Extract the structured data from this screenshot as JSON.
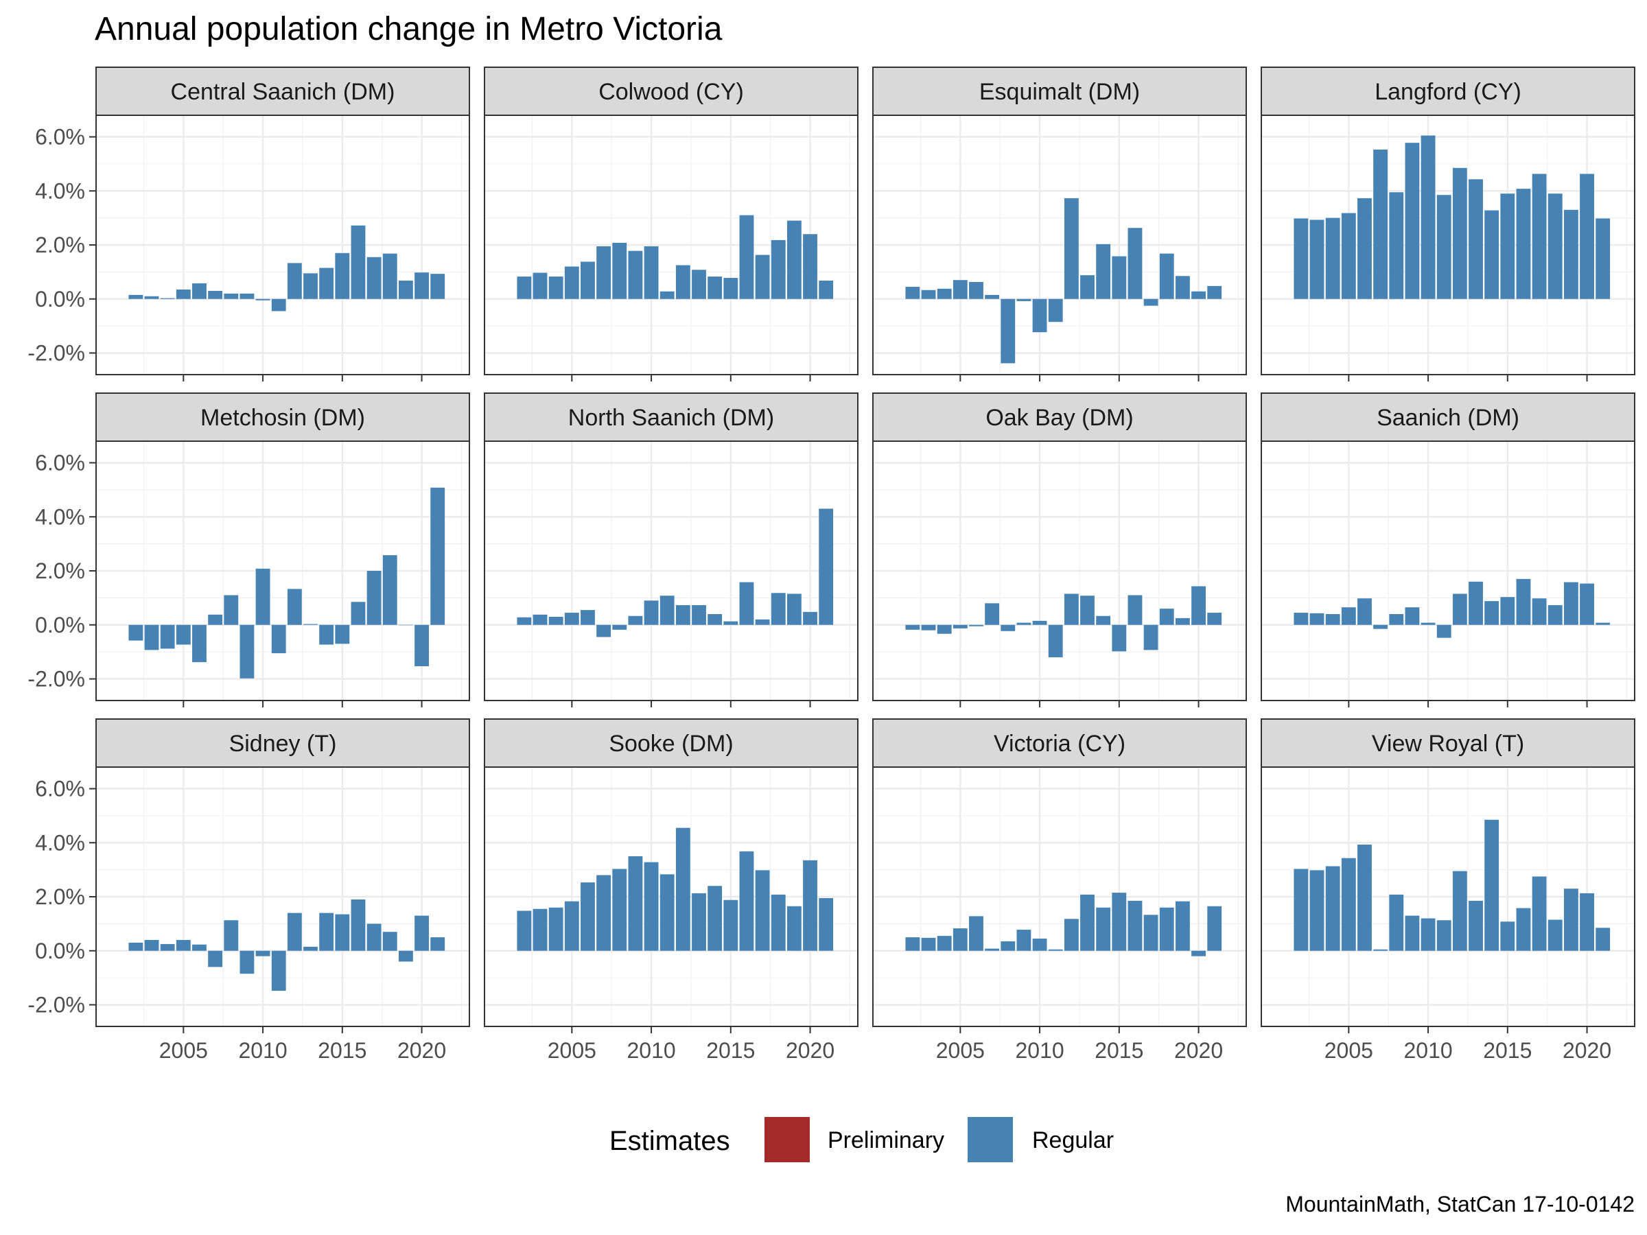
{
  "chart_data": {
    "type": "bar",
    "title": "Annual population change in Metro Victoria",
    "caption": "MountainMath, StatCan 17-10-0142",
    "ylim": [
      -0.028,
      0.068
    ],
    "y_ticks": [
      -0.02,
      0.0,
      0.02,
      0.04,
      0.06
    ],
    "y_tick_labels": [
      "-2.0%",
      "0.0%",
      "2.0%",
      "4.0%",
      "6.0%"
    ],
    "xlim": [
      1999.5,
      2023.0
    ],
    "x_ticks": [
      2005,
      2010,
      2015,
      2020
    ],
    "x_tick_labels": [
      "2005",
      "2010",
      "2015",
      "2020"
    ],
    "years": [
      2002,
      2003,
      2004,
      2005,
      2006,
      2007,
      2008,
      2009,
      2010,
      2011,
      2012,
      2013,
      2014,
      2015,
      2016,
      2017,
      2018,
      2019,
      2020,
      2021,
      2022
    ],
    "preliminary_year": 2022,
    "grid": true,
    "facet_layout": {
      "rows": 3,
      "cols": 4
    },
    "legend": {
      "title": "Estimates",
      "position": "bottom",
      "items": [
        {
          "label": "Preliminary",
          "color": "#a52a2a"
        },
        {
          "label": "Regular",
          "color": "#4682b4"
        }
      ]
    },
    "panels": [
      {
        "name": "Central Saanich (DM)",
        "values": [
          0.0015,
          0.001,
          0.0003,
          0.0035,
          0.0058,
          0.003,
          0.002,
          0.002,
          -0.0005,
          -0.0045,
          0.0133,
          0.0095,
          0.0115,
          0.017,
          0.0272,
          0.0155,
          0.0168,
          0.0068,
          0.0098,
          0.0093,
          null
        ]
      },
      {
        "name": "Colwood (CY)",
        "values": [
          0.0083,
          0.0097,
          0.0083,
          0.012,
          0.0138,
          0.0195,
          0.0208,
          0.0178,
          0.0195,
          0.0028,
          0.0125,
          0.0108,
          0.0083,
          0.0078,
          0.031,
          0.0163,
          0.0218,
          0.029,
          0.024,
          0.0068,
          null
        ]
      },
      {
        "name": "Esquimalt (DM)",
        "values": [
          0.0045,
          0.0033,
          0.0038,
          0.007,
          0.0063,
          0.0015,
          -0.0238,
          -0.0008,
          -0.0123,
          -0.0085,
          0.0373,
          0.0088,
          0.0203,
          0.0158,
          0.0263,
          -0.0025,
          0.0168,
          0.0085,
          0.0028,
          0.0048,
          null
        ]
      },
      {
        "name": "Langford (CY)",
        "values": [
          0.0298,
          0.0293,
          0.03,
          0.0318,
          0.0373,
          0.0553,
          0.0395,
          0.0578,
          0.0605,
          0.0385,
          0.0485,
          0.0443,
          0.0328,
          0.039,
          0.0408,
          0.0463,
          0.039,
          0.033,
          0.0463,
          0.0298,
          null
        ]
      },
      {
        "name": "Metchosin (DM)",
        "values": [
          -0.0058,
          -0.0093,
          -0.0088,
          -0.0073,
          -0.0138,
          0.0038,
          0.011,
          -0.0198,
          0.0208,
          -0.0105,
          0.0133,
          0.0003,
          -0.0073,
          -0.007,
          0.0085,
          0.02,
          0.0258,
          0.0,
          -0.0153,
          0.0508,
          null
        ]
      },
      {
        "name": "North Saanich (DM)",
        "values": [
          0.0028,
          0.0038,
          0.003,
          0.0045,
          0.0055,
          -0.0045,
          -0.0018,
          0.0033,
          0.009,
          0.0108,
          0.0073,
          0.0073,
          0.004,
          0.0013,
          0.0158,
          0.002,
          0.0118,
          0.0115,
          0.0048,
          0.043,
          null
        ]
      },
      {
        "name": "Oak Bay (DM)",
        "values": [
          -0.0018,
          -0.002,
          -0.0033,
          -0.0013,
          -0.0005,
          0.008,
          -0.0023,
          0.0008,
          0.0015,
          -0.012,
          0.0115,
          0.0108,
          0.0033,
          -0.0098,
          0.011,
          -0.0093,
          0.006,
          0.0025,
          0.0143,
          0.0045,
          null
        ]
      },
      {
        "name": "Saanich (DM)",
        "values": [
          0.0045,
          0.0043,
          0.004,
          0.0065,
          0.0098,
          -0.0015,
          0.004,
          0.0065,
          0.0008,
          -0.0048,
          0.0115,
          0.016,
          0.0088,
          0.0103,
          0.017,
          0.0098,
          0.0073,
          0.0158,
          0.0153,
          0.0008,
          null
        ]
      },
      {
        "name": "Sidney (T)",
        "values": [
          0.003,
          0.004,
          0.0025,
          0.004,
          0.0023,
          -0.006,
          0.0113,
          -0.0085,
          -0.002,
          -0.0148,
          0.014,
          0.0015,
          0.014,
          0.0135,
          0.019,
          0.01,
          0.007,
          -0.004,
          0.013,
          0.005,
          null
        ]
      },
      {
        "name": "Sooke (DM)",
        "values": [
          0.0148,
          0.0155,
          0.016,
          0.0183,
          0.0253,
          0.028,
          0.0303,
          0.035,
          0.0328,
          0.0283,
          0.0455,
          0.0213,
          0.024,
          0.0188,
          0.0368,
          0.0298,
          0.0208,
          0.0165,
          0.0335,
          0.0195,
          null
        ]
      },
      {
        "name": "Victoria (CY)",
        "values": [
          0.005,
          0.0048,
          0.0055,
          0.0083,
          0.0128,
          0.0008,
          0.0035,
          0.0078,
          0.0045,
          0.0005,
          0.0118,
          0.0208,
          0.016,
          0.0215,
          0.0185,
          0.0133,
          0.016,
          0.0183,
          -0.002,
          0.0165,
          null
        ]
      },
      {
        "name": "View Royal (T)",
        "values": [
          0.0303,
          0.0298,
          0.0313,
          0.0343,
          0.0393,
          0.0005,
          0.0208,
          0.013,
          0.012,
          0.0113,
          0.0295,
          0.0185,
          0.0485,
          0.0108,
          0.0158,
          0.0275,
          0.0115,
          0.023,
          0.0213,
          0.0085,
          null
        ]
      }
    ]
  }
}
